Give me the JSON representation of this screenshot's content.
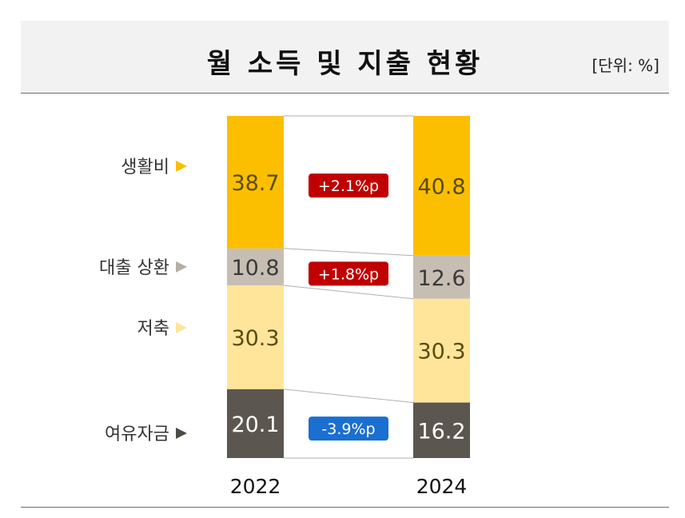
{
  "title": "월 소득 및 지출 현황",
  "unit": "[단위: %]",
  "chart_data": {
    "type": "bar",
    "stacked": true,
    "categories": [
      "2022",
      "2024"
    ],
    "series": [
      {
        "name": "생활비",
        "values": [
          38.7,
          40.8
        ],
        "color": "#fbbf00",
        "text_color": "#5a4a10",
        "label_arrow_color": "#fbbf00"
      },
      {
        "name": "대출 상환",
        "values": [
          10.8,
          12.6
        ],
        "color": "#c7beb3",
        "text_color": "#3a3a3a",
        "label_arrow_color": "#b6aea4"
      },
      {
        "name": "저축",
        "values": [
          30.3,
          30.3
        ],
        "color": "#ffe59a",
        "text_color": "#5a4a10",
        "label_arrow_color": "#ffe59a"
      },
      {
        "name": "여유자금",
        "values": [
          20.1,
          16.2
        ],
        "color": "#5b564f",
        "text_color": "#ffffff",
        "label_arrow_color": "#4d4a45"
      }
    ],
    "changes": [
      {
        "series": "생활비",
        "label": "+2.1%p",
        "color": "#c00000"
      },
      {
        "series": "대출 상환",
        "label": "+1.8%p",
        "color": "#c00000"
      },
      {
        "series": "여유자금",
        "label": "-3.9%p",
        "color": "#1a6fd0"
      }
    ],
    "ylim": [
      0,
      100
    ],
    "legend": "left"
  }
}
